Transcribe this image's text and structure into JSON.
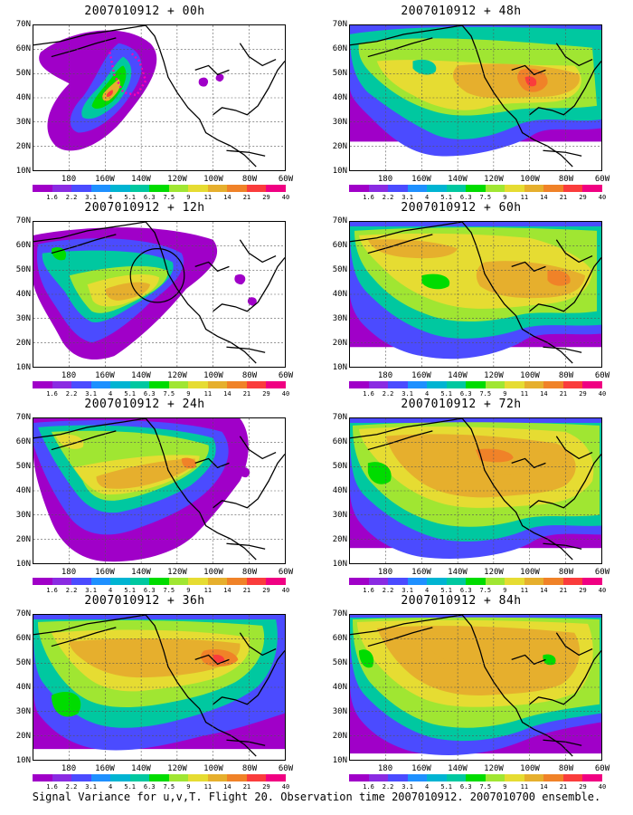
{
  "caption": "Signal Variance for u,v,T. Flight 20. Observation time 2007010912. 2007010700 ensemble.",
  "panels": [
    {
      "title": "2007010912 + 00h"
    },
    {
      "title": "2007010912 + 48h"
    },
    {
      "title": "2007010912 + 12h"
    },
    {
      "title": "2007010912 + 60h"
    },
    {
      "title": "2007010912 + 24h"
    },
    {
      "title": "2007010912 + 72h"
    },
    {
      "title": "2007010912 + 36h"
    },
    {
      "title": "2007010912 + 84h"
    }
  ],
  "axes": {
    "lat_labels": [
      "70N",
      "60N",
      "50N",
      "40N",
      "30N",
      "20N",
      "10N"
    ],
    "lon_labels": [
      "180",
      "160W",
      "140W",
      "120W",
      "100W",
      "80W",
      "60W"
    ]
  },
  "colorbar": {
    "labels": [
      "1.6",
      "2.2",
      "3.1",
      "4",
      "5.1",
      "6.3",
      "7.5",
      "9",
      "11",
      "14",
      "21",
      "29",
      "40"
    ],
    "colors": [
      "#a000c8",
      "#8a2be2",
      "#4b4bff",
      "#1e90ff",
      "#00b4d2",
      "#00c8a0",
      "#00dc00",
      "#a0e632",
      "#e6dc32",
      "#e6af2d",
      "#f08228",
      "#fa3c3c",
      "#f00082"
    ]
  },
  "icons": {
    "flight_track": "flight-track-dots",
    "target_region": "target-circle"
  }
}
